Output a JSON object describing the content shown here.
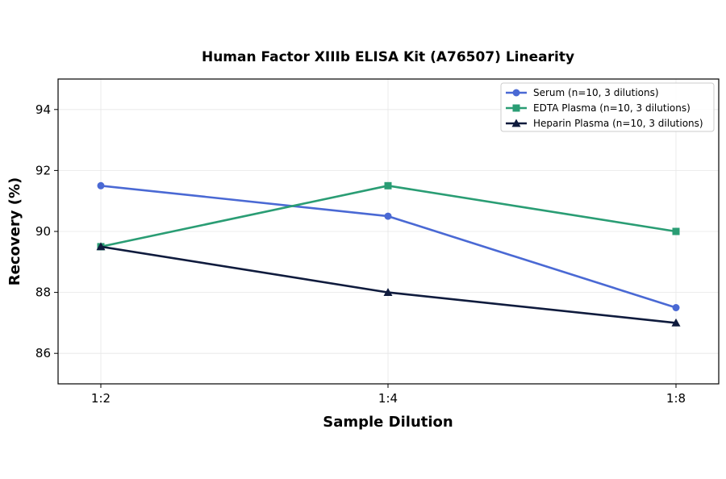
{
  "chart_data": {
    "type": "line",
    "title": "Human Factor XIIIb ELISA Kit (A76507) Linearity",
    "xlabel": "Sample Dilution",
    "ylabel": "Recovery (%)",
    "categories": [
      "1:2",
      "1:4",
      "1:8"
    ],
    "ylim": [
      85,
      95
    ],
    "yticks": [
      86,
      88,
      90,
      92,
      94
    ],
    "grid": true,
    "legend_position": "top-right",
    "series": [
      {
        "name": "Serum (n=10, 3 dilutions)",
        "values": [
          91.5,
          90.5,
          87.5
        ],
        "color": "#4a69d4",
        "marker": "circle"
      },
      {
        "name": "EDTA Plasma (n=10, 3 dilutions)",
        "values": [
          89.5,
          91.5,
          90.0
        ],
        "color": "#2a9d74",
        "marker": "square"
      },
      {
        "name": "Heparin Plasma (n=10, 3 dilutions)",
        "values": [
          89.5,
          88.0,
          87.0
        ],
        "color": "#0f1b3d",
        "marker": "triangle"
      }
    ]
  }
}
